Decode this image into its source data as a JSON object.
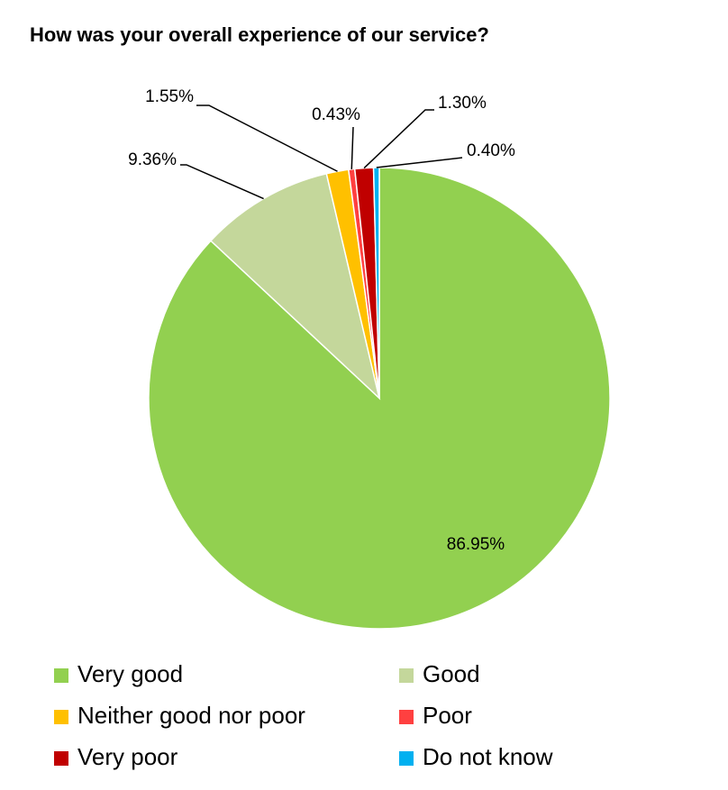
{
  "chart_data": {
    "type": "pie",
    "title": "How was your overall experience of our service?",
    "categories": [
      "Very good",
      "Good",
      "Neither good nor poor",
      "Poor",
      "Very poor",
      "Do not know"
    ],
    "values": [
      86.95,
      9.36,
      1.55,
      0.43,
      1.3,
      0.4
    ],
    "value_labels": [
      "86.95%",
      "9.36%",
      "1.55%",
      "0.43%",
      "1.30%",
      "0.40%"
    ],
    "colors": [
      "#92d050",
      "#c4d79b",
      "#ffc000",
      "#ff4040",
      "#c00000",
      "#00b0f0"
    ]
  }
}
